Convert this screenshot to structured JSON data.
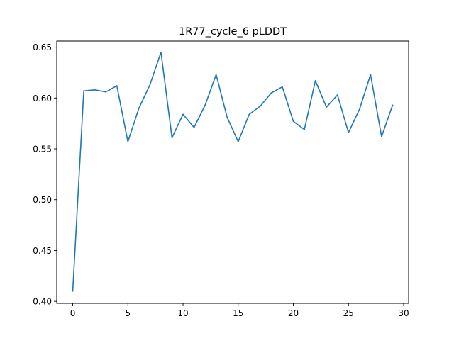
{
  "colors": {
    "line": "#1f77b4",
    "axes": "#000000",
    "background": "#ffffff"
  },
  "chart_data": {
    "type": "line",
    "title": "1R77_cycle_6 pLDDT",
    "xlabel": "",
    "ylabel": "",
    "grid": false,
    "xlim": [
      -1.45,
      30.45
    ],
    "ylim": [
      0.398,
      0.656
    ],
    "xticks": [
      0,
      5,
      10,
      15,
      20,
      25,
      30
    ],
    "xtick_labels": [
      "0",
      "5",
      "10",
      "15",
      "20",
      "25",
      "30"
    ],
    "yticks": [
      0.4,
      0.45,
      0.5,
      0.55,
      0.6,
      0.65
    ],
    "ytick_labels": [
      "0.40",
      "0.45",
      "0.50",
      "0.55",
      "0.60",
      "0.65"
    ],
    "series": [
      {
        "x": [
          0,
          1,
          2,
          3,
          4,
          5,
          6,
          7,
          8,
          9,
          10,
          11,
          12,
          13,
          14,
          15,
          16,
          17,
          18,
          19,
          20,
          21,
          22,
          23,
          24,
          25,
          26,
          27,
          28,
          29
        ],
        "values": [
          0.41,
          0.607,
          0.608,
          0.606,
          0.612,
          0.557,
          0.59,
          0.613,
          0.645,
          0.561,
          0.584,
          0.571,
          0.593,
          0.623,
          0.581,
          0.557,
          0.584,
          0.592,
          0.605,
          0.611,
          0.577,
          0.569,
          0.617,
          0.591,
          0.603,
          0.566,
          0.589,
          0.623,
          0.562,
          0.593
        ]
      }
    ]
  }
}
